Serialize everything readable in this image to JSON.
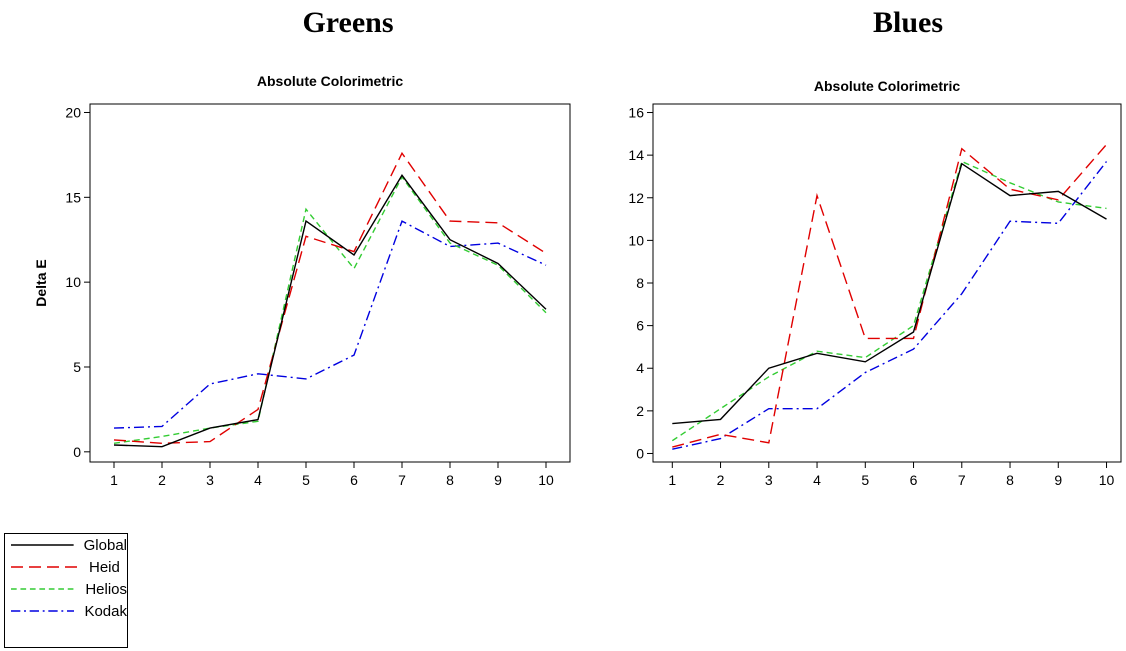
{
  "panels": {
    "left": "Greens",
    "right": "Blues"
  },
  "legend": [
    {
      "name": "Global",
      "color": "#000000",
      "dash": "solid"
    },
    {
      "name": "Heid",
      "color": "#e00000",
      "dash": "long-dash"
    },
    {
      "name": "Helios",
      "color": "#33cc33",
      "dash": "short-dash"
    },
    {
      "name": "Kodak",
      "color": "#0000e0",
      "dash": "dash-dot"
    }
  ],
  "chart_data": [
    {
      "type": "line",
      "title": "Absolute Colorimetric",
      "xlabel": "",
      "ylabel": "Delta E",
      "x": [
        1,
        2,
        3,
        4,
        5,
        6,
        7,
        8,
        9,
        10
      ],
      "xlim": [
        0.5,
        10.5
      ],
      "ylim": [
        -0.6,
        20.5
      ],
      "yticks": [
        0,
        5,
        10,
        15,
        20
      ],
      "series": [
        {
          "name": "Global",
          "values": [
            0.4,
            0.3,
            1.4,
            1.9,
            13.6,
            11.6,
            16.3,
            12.5,
            11.1,
            8.4
          ]
        },
        {
          "name": "Heid",
          "values": [
            0.7,
            0.5,
            0.6,
            2.5,
            12.7,
            11.8,
            17.6,
            13.6,
            13.5,
            11.7
          ]
        },
        {
          "name": "Helios",
          "values": [
            0.5,
            0.9,
            1.4,
            1.8,
            14.3,
            10.8,
            16.2,
            12.3,
            11.0,
            8.2
          ]
        },
        {
          "name": "Kodak",
          "values": [
            1.4,
            1.5,
            4.0,
            4.6,
            4.3,
            5.7,
            13.6,
            12.1,
            12.3,
            11.0
          ]
        }
      ]
    },
    {
      "type": "line",
      "title": "Absolute Colorimetric",
      "xlabel": "",
      "ylabel": "",
      "x": [
        1,
        2,
        3,
        4,
        5,
        6,
        7,
        8,
        9,
        10
      ],
      "xlim": [
        0.6,
        10.3
      ],
      "ylim": [
        -0.4,
        16.4
      ],
      "yticks": [
        0,
        2,
        4,
        6,
        8,
        10,
        12,
        14,
        16
      ],
      "series": [
        {
          "name": "Global",
          "values": [
            1.4,
            1.6,
            4.0,
            4.7,
            4.3,
            5.7,
            13.6,
            12.1,
            12.3,
            11.0
          ]
        },
        {
          "name": "Heid",
          "values": [
            0.3,
            0.9,
            0.5,
            12.1,
            5.4,
            5.4,
            14.3,
            12.4,
            11.9,
            14.5
          ]
        },
        {
          "name": "Helios",
          "values": [
            0.6,
            2.1,
            3.6,
            4.8,
            4.5,
            6.0,
            13.7,
            12.7,
            11.8,
            11.5
          ]
        },
        {
          "name": "Kodak",
          "values": [
            0.2,
            0.7,
            2.1,
            2.1,
            3.8,
            4.9,
            7.5,
            10.9,
            10.8,
            13.7
          ]
        }
      ]
    }
  ]
}
